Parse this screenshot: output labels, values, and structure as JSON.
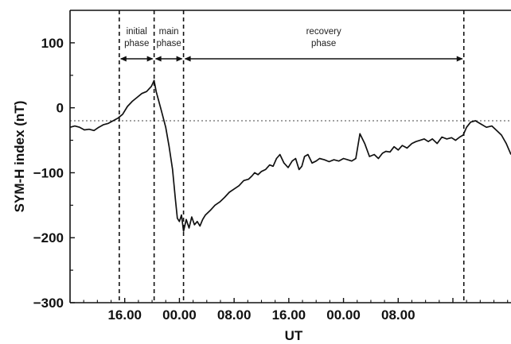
{
  "chart_data": {
    "type": "line",
    "xlabel": "UT",
    "ylabel": "SYM-H index (nT)",
    "ylim": [
      -300,
      150
    ],
    "xlim": [
      8,
      72.5
    ],
    "x_unit": "hours UT",
    "yticks": [
      -300,
      -200,
      -100,
      0,
      100
    ],
    "ytick_labels": [
      "−300",
      "−200",
      "−100",
      "0",
      "100"
    ],
    "xticks": [
      16,
      24,
      32,
      40,
      48,
      56,
      64
    ],
    "xtick_labels": [
      "16.00",
      "00.00",
      "08.00",
      "16.00",
      "00.00",
      "08.00",
      ""
    ],
    "reference_line_y": -20,
    "phase_boundaries": [
      15.2,
      20.3,
      24.6,
      65.6
    ],
    "phases": [
      {
        "label_lines": [
          "initial",
          "phase"
        ],
        "start": 15.2,
        "end": 20.3
      },
      {
        "label_lines": [
          "main",
          "phase"
        ],
        "start": 20.3,
        "end": 24.6
      },
      {
        "label_lines": [
          "recovery",
          "phase"
        ],
        "start": 24.6,
        "end": 65.6
      }
    ],
    "series": [
      {
        "x": [
          8.0,
          8.7,
          9.4,
          10.1,
          10.8,
          11.5,
          12.2,
          12.9,
          13.6,
          14.3,
          15.0,
          15.7,
          16.4,
          17.1,
          17.8,
          18.5,
          19.2,
          19.9,
          20.3,
          20.6,
          21.3,
          22.0,
          22.5,
          23.0,
          23.4,
          23.7,
          24.0,
          24.3,
          24.6,
          25.0,
          25.4,
          25.8,
          26.2,
          26.6,
          27.0,
          27.4,
          27.8,
          28.5,
          29.2,
          29.9,
          30.6,
          31.3,
          32.0,
          32.7,
          33.4,
          34.1,
          34.6,
          35.0,
          35.5,
          36.0,
          36.6,
          37.2,
          37.7,
          38.2,
          38.7,
          39.3,
          39.9,
          40.5,
          41.0,
          41.5,
          41.9,
          42.3,
          42.8,
          43.4,
          44.0,
          44.5,
          45.2,
          45.9,
          46.6,
          47.3,
          48.0,
          48.6,
          49.2,
          49.8,
          50.4,
          51.1,
          51.8,
          52.5,
          53.1,
          53.7,
          54.2,
          54.8,
          55.4,
          56.0,
          56.6,
          57.3,
          58.0,
          58.6,
          59.2,
          59.8,
          60.4,
          61.0,
          61.7,
          62.4,
          63.1,
          63.8,
          64.4,
          65.0,
          65.5,
          66.0,
          66.6,
          67.3,
          68.1,
          68.9,
          69.7,
          70.4,
          71.1,
          71.8,
          72.5
        ],
        "y": [
          -30,
          -28,
          -30,
          -34,
          -33,
          -35,
          -30,
          -26,
          -24,
          -20,
          -16,
          -10,
          2,
          10,
          16,
          22,
          25,
          33,
          42,
          25,
          -2,
          -30,
          -60,
          -95,
          -140,
          -170,
          -175,
          -165,
          -190,
          -172,
          -185,
          -168,
          -180,
          -175,
          -182,
          -172,
          -165,
          -158,
          -150,
          -145,
          -138,
          -130,
          -125,
          -120,
          -112,
          -110,
          -105,
          -100,
          -103,
          -98,
          -95,
          -88,
          -90,
          -78,
          -72,
          -85,
          -92,
          -82,
          -78,
          -95,
          -90,
          -75,
          -72,
          -85,
          -82,
          -78,
          -80,
          -83,
          -80,
          -82,
          -78,
          -80,
          -82,
          -78,
          -40,
          -55,
          -75,
          -72,
          -78,
          -70,
          -67,
          -68,
          -60,
          -65,
          -58,
          -62,
          -55,
          -52,
          -50,
          -48,
          -52,
          -48,
          -55,
          -45,
          -48,
          -46,
          -50,
          -45,
          -42,
          -30,
          -22,
          -20,
          -25,
          -30,
          -28,
          -35,
          -42,
          -55,
          -72
        ]
      }
    ]
  }
}
